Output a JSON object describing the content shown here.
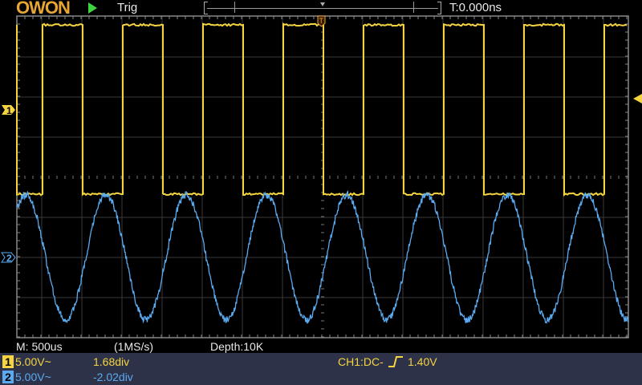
{
  "header": {
    "logo": "OWON",
    "run_state_icon": "play-icon",
    "trigger_status": "Trig",
    "trigger_time": "T:0.000ns"
  },
  "markers": {
    "ch1": "1",
    "ch2": "2",
    "trigger": "T"
  },
  "acquisition": {
    "timebase": "M: 500us",
    "sample_rate": "(1MS/s)",
    "depth": "Depth:10K"
  },
  "channels": [
    {
      "number": "1",
      "scale": "5.00V~",
      "offset": "1.68div",
      "color": "#f5d442"
    },
    {
      "number": "2",
      "scale": "5.00V~",
      "offset": "-2.02div",
      "color": "#5aaaf0"
    }
  ],
  "trigger": {
    "label": "CH1:DC-",
    "edge_icon": "rising-edge-icon",
    "level": "1.40V"
  },
  "colors": {
    "ch1": "#f5d442",
    "ch2": "#5aaaf0",
    "logo": "#e8a534",
    "panel": "#2e3248"
  }
}
